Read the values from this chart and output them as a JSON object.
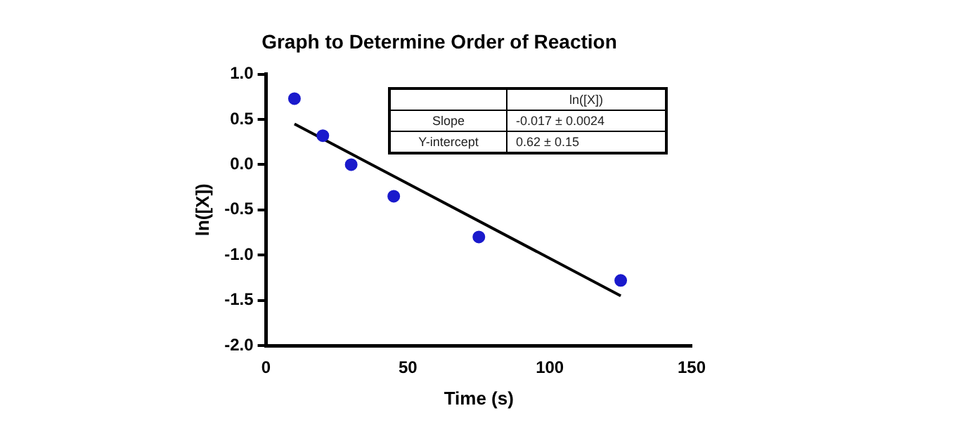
{
  "chart_data": {
    "type": "scatter",
    "title": "Graph to Determine Order of Reaction",
    "xlabel": "Time (s)",
    "ylabel": "ln([X])",
    "xlim": [
      0,
      150
    ],
    "xticks": [
      0,
      50,
      100,
      150
    ],
    "ylim": [
      -2.0,
      1.0
    ],
    "yticks": [
      {
        "value": -2,
        "label": "-2.0"
      },
      {
        "value": -1.5,
        "label": "-1.5"
      },
      {
        "value": -1,
        "label": "-1.0"
      },
      {
        "value": -0.5,
        "label": "-0.5"
      },
      {
        "value": 0,
        "label": "0.0"
      },
      {
        "value": 0.5,
        "label": "0.5"
      },
      {
        "value": 1,
        "label": "1.0"
      }
    ],
    "grid": false,
    "legend": false,
    "marker": "circle",
    "series": [
      {
        "color": "#1a1acc",
        "x": [
          10,
          20,
          30,
          45,
          75,
          125
        ],
        "values": [
          0.73,
          0.32,
          0.0,
          -0.35,
          -0.8,
          -1.28
        ]
      },
      {
        "type": "line",
        "color": "#000000",
        "x": [
          10,
          125
        ],
        "values": [
          0.45,
          -1.45
        ],
        "line_style": "solid",
        "marker": "none"
      }
    ],
    "annotations": [
      "ln([X])",
      "Slope",
      "-0.017 ± 0.0024",
      "Y-intercept",
      "0.62 ± 0.15"
    ]
  }
}
